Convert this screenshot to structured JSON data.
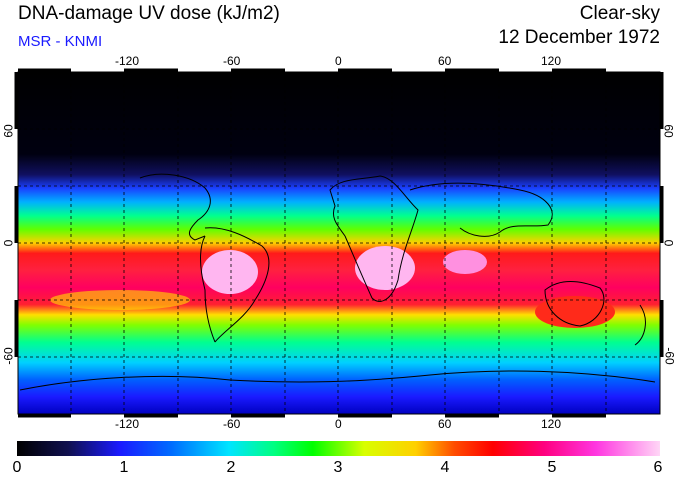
{
  "header": {
    "title": "DNA-damage UV dose (kJ/m2)",
    "subtitle": "MSR - KNMI",
    "condition": "Clear-sky",
    "date": "12 December 1972"
  },
  "map": {
    "lon_ticks": [
      "-120",
      "-60",
      "0",
      "60",
      "120"
    ],
    "lat_ticks": [
      "60",
      "0",
      "-60"
    ]
  },
  "colorbar": {
    "labels": [
      "0",
      "1",
      "2",
      "3",
      "4",
      "5",
      "6"
    ]
  },
  "colors": {
    "subtitle": "#1a1aff",
    "polar": "#000000",
    "tropics": "#ff0000"
  }
}
